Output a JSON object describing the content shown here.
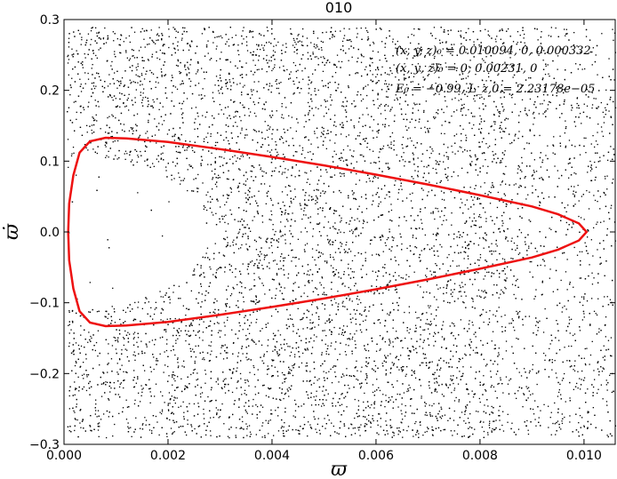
{
  "chart_data": {
    "type": "scatter",
    "title": "010",
    "xlabel": "ϖ",
    "ylabel": "ϖ̇",
    "xlim": [
      0.0,
      0.0106
    ],
    "ylim": [
      -0.3,
      0.3
    ],
    "xticks": [
      0.0,
      0.002,
      0.004,
      0.006,
      0.008,
      0.01
    ],
    "xtick_labels": [
      "0.000",
      "0.002",
      "0.004",
      "0.006",
      "0.008",
      "0.010"
    ],
    "yticks": [
      -0.3,
      -0.2,
      -0.1,
      0.0,
      0.1,
      0.2,
      0.3
    ],
    "ytick_labels": [
      "−0.3",
      "−0.2",
      "−0.1",
      "0.0",
      "0.1",
      "0.2",
      "0.3"
    ],
    "grid": false,
    "annotations": [
      "(x, y, z)₀ = 0.010094, 0, 0.000332",
      "(ẋ, ẏ, ż)₀ = 0, 0.00231, 0",
      "E₀ = −0.99, L_z,0 = 2.23178e−05"
    ],
    "series": [
      {
        "kind": "scatter",
        "color": "#000000",
        "description_points": "dense chaotic orbit points filling the region, sparse near x=0, y=0",
        "x_range": [
          5e-05,
          0.0106
        ],
        "y_range": [
          -0.29,
          0.29
        ]
      },
      {
        "kind": "curve",
        "color": "#ee1111",
        "x": [
          0.01005,
          0.0099,
          0.0095,
          0.009,
          0.008,
          0.007,
          0.006,
          0.005,
          0.004,
          0.003,
          0.002,
          0.0012,
          0.0008,
          0.0005,
          0.0003,
          0.00018,
          0.0001,
          8e-05,
          0.0001,
          0.00018,
          0.0003,
          0.0005,
          0.0008,
          0.0012,
          0.002,
          0.003,
          0.004,
          0.005,
          0.006,
          0.007,
          0.008,
          0.009,
          0.0095,
          0.0099,
          0.01005
        ],
        "y": [
          0.0,
          0.012,
          0.025,
          0.036,
          0.052,
          0.067,
          0.081,
          0.094,
          0.106,
          0.117,
          0.127,
          0.132,
          0.133,
          0.128,
          0.112,
          0.08,
          0.04,
          0.0,
          -0.04,
          -0.08,
          -0.112,
          -0.128,
          -0.133,
          -0.132,
          -0.127,
          -0.117,
          -0.106,
          -0.094,
          -0.081,
          -0.067,
          -0.052,
          -0.036,
          -0.025,
          -0.012,
          0.0
        ]
      }
    ]
  }
}
